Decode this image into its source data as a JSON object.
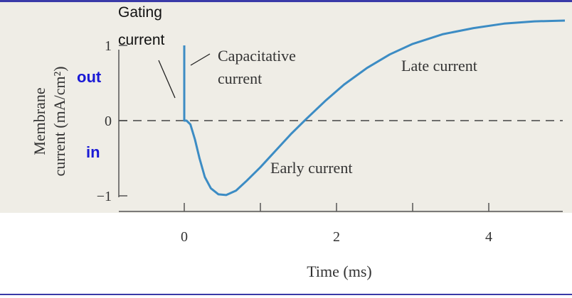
{
  "chart_data": {
    "type": "line",
    "title": "",
    "xlabel": "Time (ms)",
    "ylabel": "Membrane current (mA/cm²)",
    "ylabel_lines": [
      "Membrane",
      "current (mA/cm²)"
    ],
    "xlim": [
      -0.85,
      5.0
    ],
    "ylim": [
      -1.25,
      1.35
    ],
    "x_ticks": [
      0,
      2,
      4
    ],
    "x_tick_labels": [
      "0",
      "2",
      "4"
    ],
    "x_minor_ticks": [
      1,
      3,
      5
    ],
    "y_ticks": [
      1,
      0,
      -1
    ],
    "y_tick_labels": [
      "1",
      "0",
      "−1"
    ],
    "grid": false,
    "baseline": {
      "y": 0,
      "style": "dashed"
    },
    "series": [
      {
        "x": [
          0,
          0,
          0,
          0.03,
          0.08,
          0.14,
          0.2,
          0.27,
          0.35,
          0.45,
          0.55,
          0.68,
          0.82,
          1.0,
          1.2,
          1.4,
          1.6,
          1.85,
          2.1,
          2.4,
          2.7,
          3.0,
          3.4,
          3.8,
          4.2,
          4.6,
          5.0
        ],
        "y": [
          1.0,
          0.02,
          0.0,
          0.0,
          -0.05,
          -0.25,
          -0.5,
          -0.75,
          -0.9,
          -0.98,
          -0.99,
          -0.93,
          -0.8,
          -0.62,
          -0.4,
          -0.18,
          0.02,
          0.26,
          0.48,
          0.7,
          0.88,
          1.02,
          1.15,
          1.23,
          1.29,
          1.32,
          1.33
        ]
      }
    ],
    "annotations": {
      "gating": [
        "Gating",
        "current"
      ],
      "capacitative": [
        "Capacitative",
        "current"
      ],
      "early": "Early current",
      "late": "Late current",
      "out": "out",
      "in": "in"
    },
    "colors": {
      "background": "#efede6",
      "curve": "#3c8cc4",
      "label_blue": "#1a1ad6",
      "axis": "#555555",
      "frame": "#3a3aa8"
    }
  }
}
